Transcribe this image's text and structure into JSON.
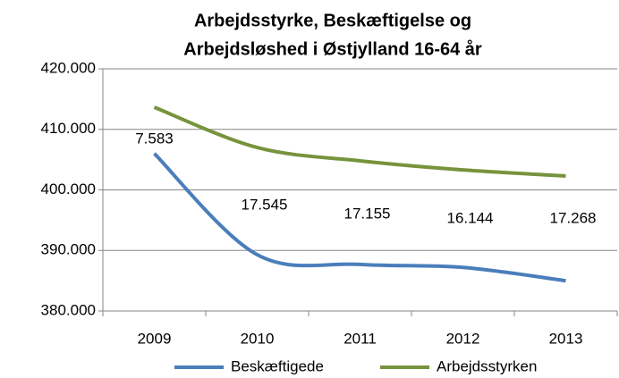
{
  "chart_data": {
    "type": "line",
    "title": [
      "Arbejdsstyrke, Beskæftigelse og",
      "Arbejdsløshed i Østjylland 16-64 år"
    ],
    "categories": [
      "2009",
      "2010",
      "2011",
      "2012",
      "2013"
    ],
    "series": [
      {
        "name": "Beskæftigede",
        "color": "#4a7ebb",
        "values": [
          406000,
          389300,
          387700,
          387200,
          385000
        ]
      },
      {
        "name": "Arbejdsstyrken",
        "color": "#77933c",
        "values": [
          413650,
          407000,
          404800,
          403300,
          402300
        ]
      }
    ],
    "annotations": [
      "7.583",
      "17.545",
      "17.155",
      "16.144",
      "17.268"
    ],
    "ylim": [
      380000,
      420000
    ],
    "yticks": [
      {
        "value": 380000,
        "label": "380.000"
      },
      {
        "value": 390000,
        "label": "390.000"
      },
      {
        "value": 400000,
        "label": "400.000"
      },
      {
        "value": 410000,
        "label": "410.000"
      },
      {
        "value": 420000,
        "label": "420.000"
      }
    ],
    "grid": true,
    "legend": "bottom"
  }
}
